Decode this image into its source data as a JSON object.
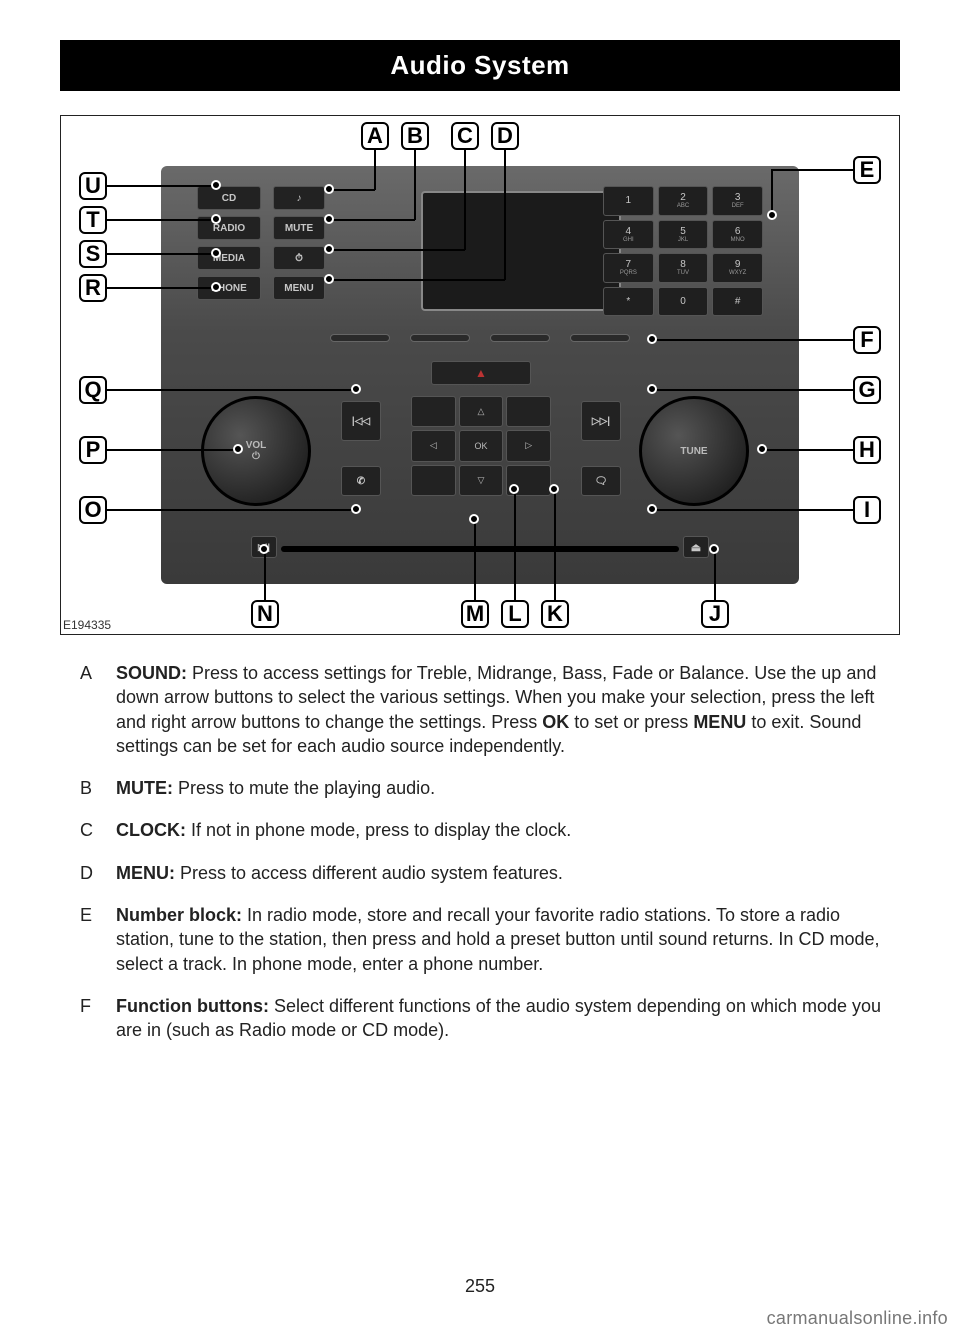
{
  "header": {
    "title": "Audio System"
  },
  "figure": {
    "ref": "E194335",
    "labels_top": [
      "A",
      "B",
      "C",
      "D"
    ],
    "labels_left": [
      "U",
      "T",
      "S",
      "R",
      "Q",
      "P",
      "O"
    ],
    "labels_right": [
      "E",
      "F",
      "G",
      "H",
      "I"
    ],
    "labels_bottom": [
      "N",
      "M",
      "L",
      "K",
      "J"
    ],
    "buttons_left": [
      "CD",
      "RADIO",
      "MEDIA",
      "PHONE"
    ],
    "buttons_mid": [
      "♪",
      "MUTE",
      "⏱",
      "MENU"
    ],
    "keypad": [
      {
        "n": "1",
        "s": ""
      },
      {
        "n": "2",
        "s": "ABC"
      },
      {
        "n": "3",
        "s": "DEF"
      },
      {
        "n": "4",
        "s": "GHI"
      },
      {
        "n": "5",
        "s": "JKL"
      },
      {
        "n": "6",
        "s": "MNO"
      },
      {
        "n": "7",
        "s": "PQRS"
      },
      {
        "n": "8",
        "s": "TUV"
      },
      {
        "n": "9",
        "s": "WXYZ"
      },
      {
        "n": "*",
        "s": ""
      },
      {
        "n": "0",
        "s": ""
      },
      {
        "n": "#",
        "s": ""
      }
    ],
    "knob_left": "VOL\n⏻",
    "knob_right": "TUNE",
    "center": {
      "ok": "OK",
      "up": "△",
      "down": "▽",
      "left": "◁",
      "right": "▷"
    },
    "hazard": "▲",
    "seek_prev": "|◁◁",
    "seek_next": "▷▷|",
    "phone": "✆",
    "voice": "🗨",
    "eject": "⏏",
    "play": "▷||"
  },
  "descriptions": [
    {
      "letter": "A",
      "bold": "SOUND:",
      "text": " Press to access settings for Treble, Midrange, Bass, Fade or Balance. Use the up and down arrow buttons to select the various settings. When you make your selection, press the left and right arrow buttons to change the settings. Press OK to set or press MENU to exit. Sound settings can be set for each audio source independently."
    },
    {
      "letter": "B",
      "bold": "MUTE:",
      "text": " Press to mute the playing audio."
    },
    {
      "letter": "C",
      "bold": "CLOCK:",
      "text": " If not in phone mode, press to display the clock."
    },
    {
      "letter": "D",
      "bold": "MENU:",
      "text": " Press to access different audio system features."
    },
    {
      "letter": "E",
      "bold": "Number block:",
      "text": " In radio mode, store and recall your favorite radio stations. To store a radio station, tune to the station, then press and hold a preset button until sound returns. In CD mode, select a track. In phone mode, enter a phone number."
    },
    {
      "letter": "F",
      "bold": "Function buttons:",
      "text": " Select different functions of the audio system depending on which mode you are in (such as Radio mode or CD mode)."
    }
  ],
  "page_number": "255",
  "watermark": "carmanualsonline.info",
  "colors": {
    "header_bg": "#000000",
    "header_fg": "#ffffff",
    "panel_dark": "#3a3a3a",
    "panel_light": "#6a6a6a",
    "button_bg": "#222222",
    "button_border": "#555555",
    "button_fg": "#c7c7c7",
    "text": "#222222",
    "watermark": "#777777"
  }
}
